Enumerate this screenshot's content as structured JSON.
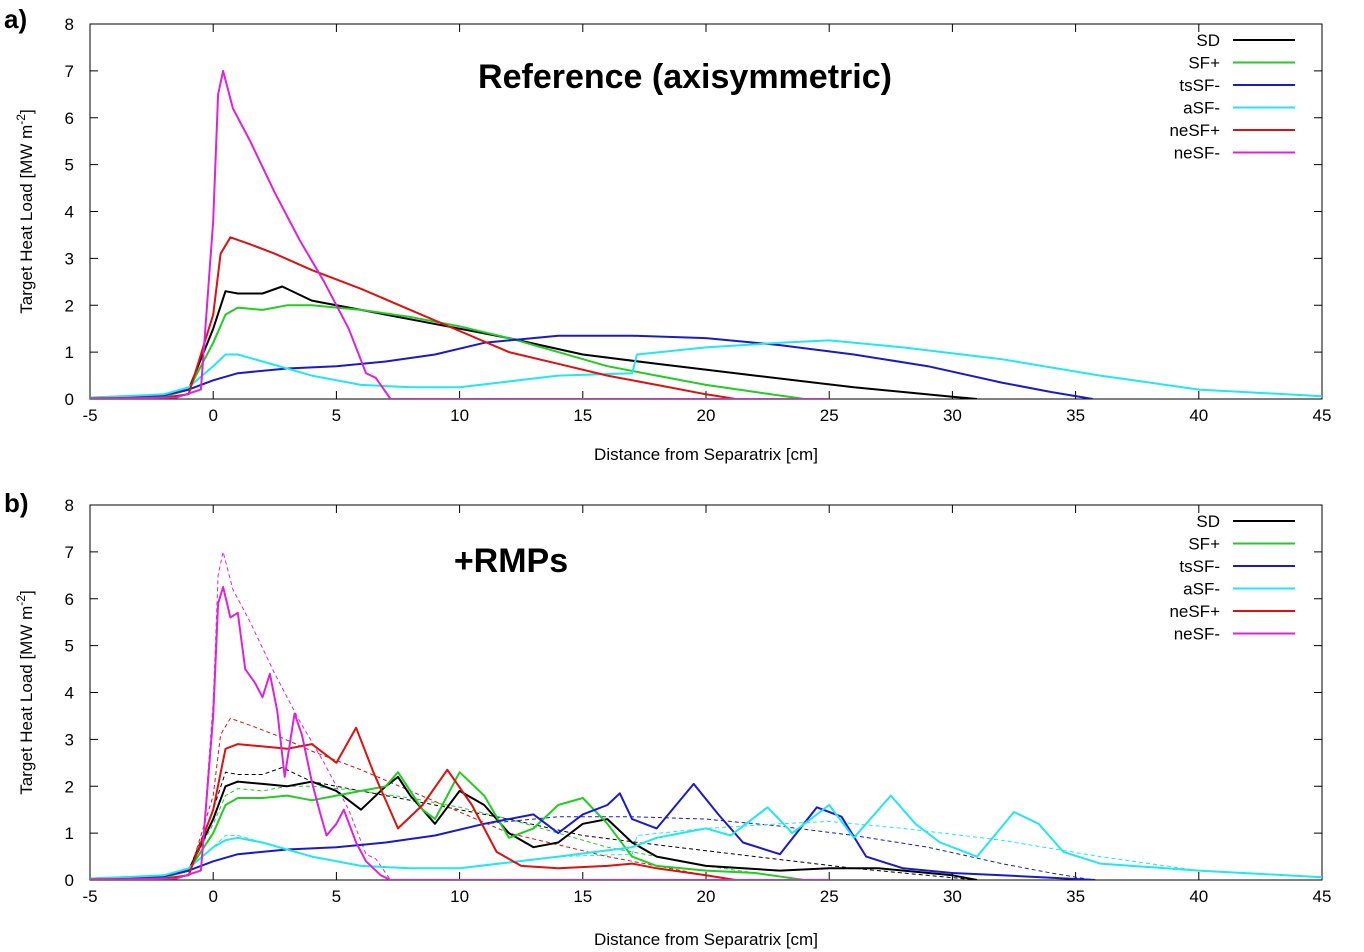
{
  "colors": {
    "SD": "#000000",
    "SF+": "#22cc22",
    "tsSF-": "#1a1acc",
    "aSF-": "#22e6f0",
    "neSF+": "#dd1111",
    "neSF-": "#dd22dd"
  },
  "chart_data": [
    {
      "type": "line",
      "panel_label": "a)",
      "annotation": "Reference (axisymmetric)",
      "xlabel": "Distance from Separatrix [cm]",
      "ylabel": "Target Heat Load [MW m-2]",
      "xlim": [
        -5,
        45
      ],
      "ylim": [
        0,
        8
      ],
      "xticks": [
        -5,
        0,
        5,
        10,
        15,
        20,
        25,
        30,
        35,
        40,
        45
      ],
      "yticks": [
        0,
        1,
        2,
        3,
        4,
        5,
        6,
        7,
        8
      ],
      "grid": false,
      "legend_position": "top-right",
      "series": [
        {
          "name": "SD",
          "style": "solid",
          "x": [
            -5,
            -2,
            -1,
            0,
            0.5,
            1,
            2,
            2.8,
            4,
            6,
            8,
            10,
            12,
            15,
            18,
            22,
            26,
            30,
            31
          ],
          "y": [
            0.03,
            0.06,
            0.2,
            1.5,
            2.3,
            2.25,
            2.25,
            2.4,
            2.1,
            1.9,
            1.7,
            1.5,
            1.3,
            0.95,
            0.75,
            0.5,
            0.25,
            0.05,
            0
          ]
        },
        {
          "name": "SF+",
          "style": "solid",
          "x": [
            -5,
            -2,
            -1,
            0,
            0.5,
            1,
            2,
            3,
            4,
            6,
            8,
            10,
            12,
            14,
            16,
            18,
            20,
            22,
            24
          ],
          "y": [
            0.02,
            0.05,
            0.2,
            1.2,
            1.8,
            1.95,
            1.9,
            2.0,
            2.0,
            1.9,
            1.75,
            1.55,
            1.3,
            1.0,
            0.7,
            0.5,
            0.3,
            0.15,
            0
          ]
        },
        {
          "name": "tsSF-",
          "style": "solid",
          "x": [
            -5,
            -2,
            -1,
            0,
            1,
            3,
            5,
            7,
            9,
            11,
            14,
            17,
            20,
            23,
            26,
            29,
            32,
            34,
            35.7
          ],
          "y": [
            0.03,
            0.08,
            0.2,
            0.4,
            0.55,
            0.65,
            0.7,
            0.8,
            0.95,
            1.2,
            1.35,
            1.35,
            1.3,
            1.15,
            0.95,
            0.7,
            0.35,
            0.15,
            0
          ]
        },
        {
          "name": "aSF-",
          "style": "solid",
          "x": [
            -5,
            -2,
            -1,
            0,
            0.5,
            1,
            2,
            4,
            6,
            8,
            10,
            14,
            17,
            17.2,
            20,
            23,
            25,
            28,
            32,
            36,
            40,
            45
          ],
          "y": [
            0.03,
            0.1,
            0.25,
            0.7,
            0.95,
            0.95,
            0.8,
            0.5,
            0.3,
            0.25,
            0.25,
            0.5,
            0.55,
            0.95,
            1.1,
            1.2,
            1.25,
            1.1,
            0.85,
            0.5,
            0.2,
            0.06
          ]
        },
        {
          "name": "neSF+",
          "style": "solid",
          "x": [
            -5,
            -2,
            -1,
            0,
            0.3,
            0.7,
            1.5,
            2.5,
            4,
            6,
            8,
            10,
            12,
            14,
            16,
            18,
            20,
            21.2
          ],
          "y": [
            0.01,
            0.03,
            0.1,
            1.8,
            3.1,
            3.45,
            3.3,
            3.1,
            2.75,
            2.35,
            1.9,
            1.45,
            1.0,
            0.75,
            0.5,
            0.3,
            0.1,
            0
          ]
        },
        {
          "name": "neSF-",
          "style": "solid",
          "x": [
            -5,
            -1.5,
            -0.5,
            0,
            0.2,
            0.4,
            0.8,
            1.5,
            2.5,
            3.5,
            4.5,
            5.5,
            6.2,
            6.6,
            7,
            7.2,
            25
          ],
          "y": [
            0,
            0.03,
            0.2,
            3.8,
            6.5,
            7.0,
            6.2,
            5.5,
            4.4,
            3.4,
            2.5,
            1.5,
            0.55,
            0.45,
            0.15,
            0,
            0
          ]
        }
      ]
    },
    {
      "type": "line",
      "panel_label": "b)",
      "annotation": "+RMPs",
      "xlabel": "Distance from Separatrix [cm]",
      "ylabel": "Target Heat Load [MW m-2]",
      "xlim": [
        -5,
        45
      ],
      "ylim": [
        0,
        8
      ],
      "xticks": [
        -5,
        0,
        5,
        10,
        15,
        20,
        25,
        30,
        35,
        40,
        45
      ],
      "yticks": [
        0,
        1,
        2,
        3,
        4,
        5,
        6,
        7,
        8
      ],
      "grid": false,
      "legend_position": "top-right",
      "reference_overlay": "dashed copies of panel a) curves",
      "series": [
        {
          "name": "SD",
          "style": "solid",
          "x": [
            -5,
            -2,
            -1,
            0,
            0.5,
            1,
            2,
            3,
            4,
            5,
            6,
            7,
            7.5,
            8,
            9,
            10,
            11,
            12,
            13,
            14,
            15,
            16,
            17,
            18,
            20,
            23,
            25,
            27,
            30,
            31
          ],
          "y": [
            0.03,
            0.06,
            0.2,
            1.3,
            2.0,
            2.1,
            2.05,
            2.0,
            2.1,
            1.9,
            1.5,
            2.0,
            2.2,
            1.8,
            1.2,
            1.9,
            1.6,
            1.0,
            0.7,
            0.8,
            1.2,
            1.3,
            0.8,
            0.5,
            0.3,
            0.2,
            0.25,
            0.25,
            0.1,
            0
          ]
        },
        {
          "name": "SF+",
          "style": "solid",
          "x": [
            -5,
            -2,
            -1,
            0,
            0.5,
            1,
            2,
            3,
            4,
            5,
            6,
            7,
            7.5,
            8.5,
            9,
            10,
            11,
            12,
            13,
            14,
            15,
            16,
            17,
            18,
            20,
            22,
            24
          ],
          "y": [
            0.02,
            0.05,
            0.2,
            1.0,
            1.6,
            1.75,
            1.75,
            1.8,
            1.7,
            1.8,
            1.9,
            2.0,
            2.3,
            1.5,
            1.3,
            2.3,
            1.8,
            0.9,
            1.1,
            1.6,
            1.75,
            1.2,
            0.5,
            0.3,
            0.2,
            0.15,
            0
          ]
        },
        {
          "name": "tsSF-",
          "style": "solid",
          "x": [
            -5,
            -2,
            -1,
            0,
            1,
            3,
            5,
            7,
            9,
            11,
            13,
            14,
            15,
            16,
            16.5,
            17,
            18,
            19.5,
            20.5,
            21.5,
            23,
            24.5,
            25.5,
            26.5,
            28,
            30,
            32,
            34,
            35.8
          ],
          "y": [
            0.03,
            0.08,
            0.2,
            0.4,
            0.55,
            0.65,
            0.7,
            0.8,
            0.95,
            1.2,
            1.4,
            1.0,
            1.4,
            1.6,
            1.85,
            1.3,
            1.1,
            2.05,
            1.4,
            0.8,
            0.55,
            1.55,
            1.35,
            0.5,
            0.25,
            0.15,
            0.1,
            0.05,
            0
          ]
        },
        {
          "name": "aSF-",
          "style": "solid",
          "x": [
            -5,
            -2,
            -1,
            0,
            0.5,
            1,
            2,
            4,
            6,
            8,
            10,
            14,
            17,
            18,
            20,
            21,
            22.5,
            23.5,
            25,
            26,
            27.5,
            28.5,
            29.5,
            31,
            32.5,
            33.5,
            34.5,
            36,
            40,
            45
          ],
          "y": [
            0.03,
            0.1,
            0.25,
            0.7,
            0.85,
            0.9,
            0.8,
            0.5,
            0.3,
            0.25,
            0.25,
            0.5,
            0.7,
            0.9,
            1.1,
            0.95,
            1.55,
            1.0,
            1.6,
            0.9,
            1.8,
            1.2,
            0.8,
            0.5,
            1.45,
            1.2,
            0.6,
            0.35,
            0.2,
            0.06
          ]
        },
        {
          "name": "neSF+",
          "style": "solid",
          "x": [
            -5,
            -2,
            -1,
            0,
            0.5,
            1,
            2,
            3,
            4,
            5,
            5.8,
            6.5,
            7.5,
            8.5,
            9.5,
            10.5,
            11.5,
            12.5,
            14,
            16,
            17,
            18,
            20,
            21.2
          ],
          "y": [
            0.01,
            0.03,
            0.1,
            1.5,
            2.8,
            2.9,
            2.85,
            2.8,
            2.9,
            2.5,
            3.25,
            2.3,
            1.1,
            1.6,
            2.35,
            1.6,
            0.6,
            0.3,
            0.25,
            0.3,
            0.35,
            0.25,
            0.1,
            0
          ]
        },
        {
          "name": "neSF-",
          "style": "solid",
          "x": [
            -5,
            -1.5,
            -0.5,
            0,
            0.2,
            0.4,
            0.7,
            1,
            1.3,
            1.7,
            2,
            2.3,
            2.6,
            2.9,
            3.3,
            3.6,
            4,
            4.3,
            4.6,
            5,
            5.3,
            5.8,
            6.2,
            6.8,
            7.2,
            25
          ],
          "y": [
            0,
            0.03,
            0.2,
            3.5,
            5.9,
            6.25,
            5.6,
            5.7,
            4.5,
            4.2,
            3.9,
            4.4,
            3.6,
            2.2,
            3.55,
            3.1,
            2.1,
            1.5,
            0.95,
            1.2,
            1.5,
            0.8,
            0.4,
            0.1,
            0,
            0
          ]
        }
      ]
    }
  ]
}
